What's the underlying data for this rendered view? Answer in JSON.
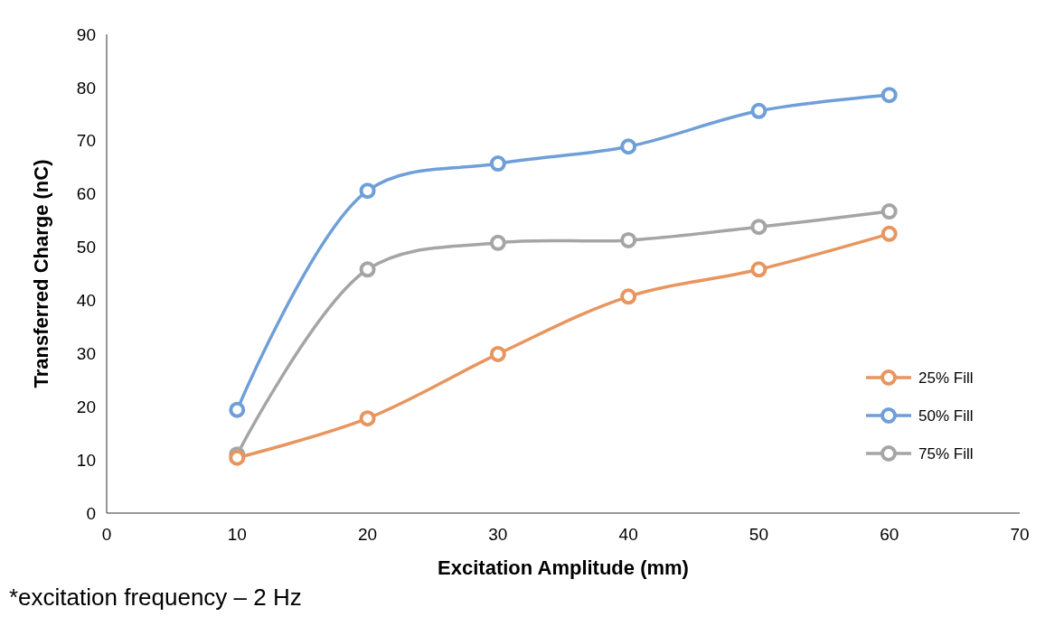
{
  "chart_data": {
    "type": "line",
    "xlabel": "Excitation Amplitude (mm)",
    "ylabel": "Transferred Charge (nC)",
    "x": [
      10,
      20,
      30,
      40,
      50,
      60
    ],
    "series": [
      {
        "name": "25% Fill",
        "color": "#e8955f",
        "values": [
          10.4,
          17.8,
          29.9,
          40.7,
          45.8,
          52.5
        ]
      },
      {
        "name": "50% Fill",
        "color": "#6f9fd8",
        "values": [
          19.4,
          60.6,
          65.7,
          68.9,
          75.6,
          78.6
        ]
      },
      {
        "name": "75% Fill",
        "color": "#a5a5a5",
        "values": [
          11.0,
          45.8,
          50.8,
          51.3,
          53.8,
          56.7
        ]
      }
    ],
    "xlim": [
      0,
      70
    ],
    "xticks": [
      0,
      10,
      20,
      30,
      40,
      50,
      60,
      70
    ],
    "ylim": [
      0,
      90
    ],
    "yticks": [
      0,
      10,
      20,
      30,
      40,
      50,
      60,
      70,
      80,
      90
    ],
    "grid": false,
    "legend": "bottom right",
    "marker": "circle",
    "line_style": "solid",
    "annotations": [
      "*excitation frequency – 2 Hz"
    ]
  }
}
